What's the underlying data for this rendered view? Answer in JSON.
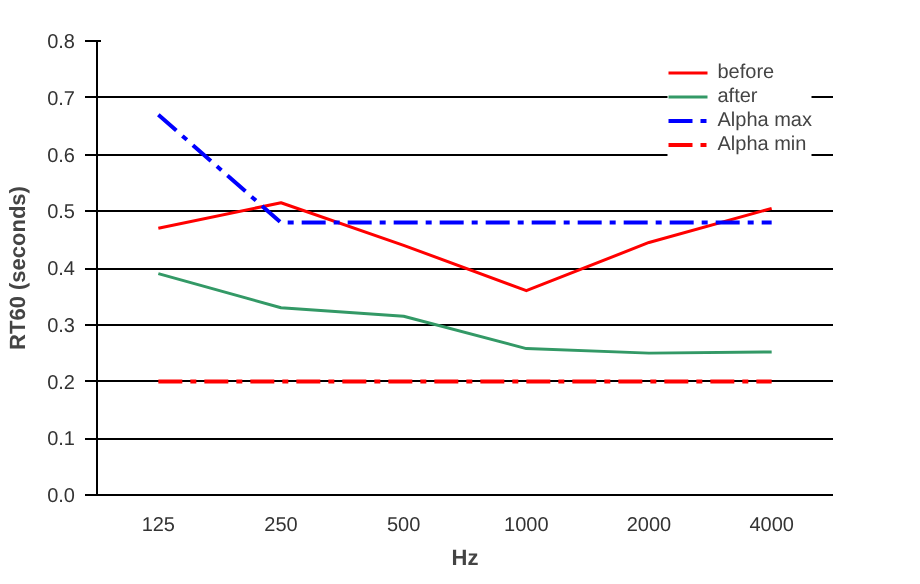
{
  "chart_data": {
    "type": "line",
    "xlabel": "Hz",
    "ylabel": "RT60 (seconds)",
    "categories": [
      "125",
      "250",
      "500",
      "1000",
      "2000",
      "4000"
    ],
    "series": [
      {
        "name": "before",
        "color": "#ff0000",
        "values": [
          0.47,
          0.515,
          0.44,
          0.36,
          0.445,
          0.505
        ]
      },
      {
        "name": "after",
        "color": "#339966",
        "values": [
          0.39,
          0.33,
          0.315,
          0.258,
          0.25,
          0.252
        ]
      },
      {
        "name": "Alpha max",
        "color": "#0000ff",
        "line_style": "dashed",
        "values": [
          0.67,
          0.48,
          0.48,
          0.48,
          0.48,
          0.48
        ]
      },
      {
        "name": "Alpha min",
        "color": "#ff0000",
        "line_style": "dashed",
        "values": [
          0.2,
          0.2,
          0.2,
          0.2,
          0.2,
          0.2
        ]
      }
    ],
    "ylim": [
      0,
      0.8
    ],
    "yticks": [
      {
        "value": 0,
        "label": "0.0"
      },
      0.1,
      0.2,
      0.3,
      0.4,
      0.5,
      0.6,
      0.7,
      0.8
    ],
    "grid": "y",
    "legend": "top right",
    "marker": "none"
  }
}
